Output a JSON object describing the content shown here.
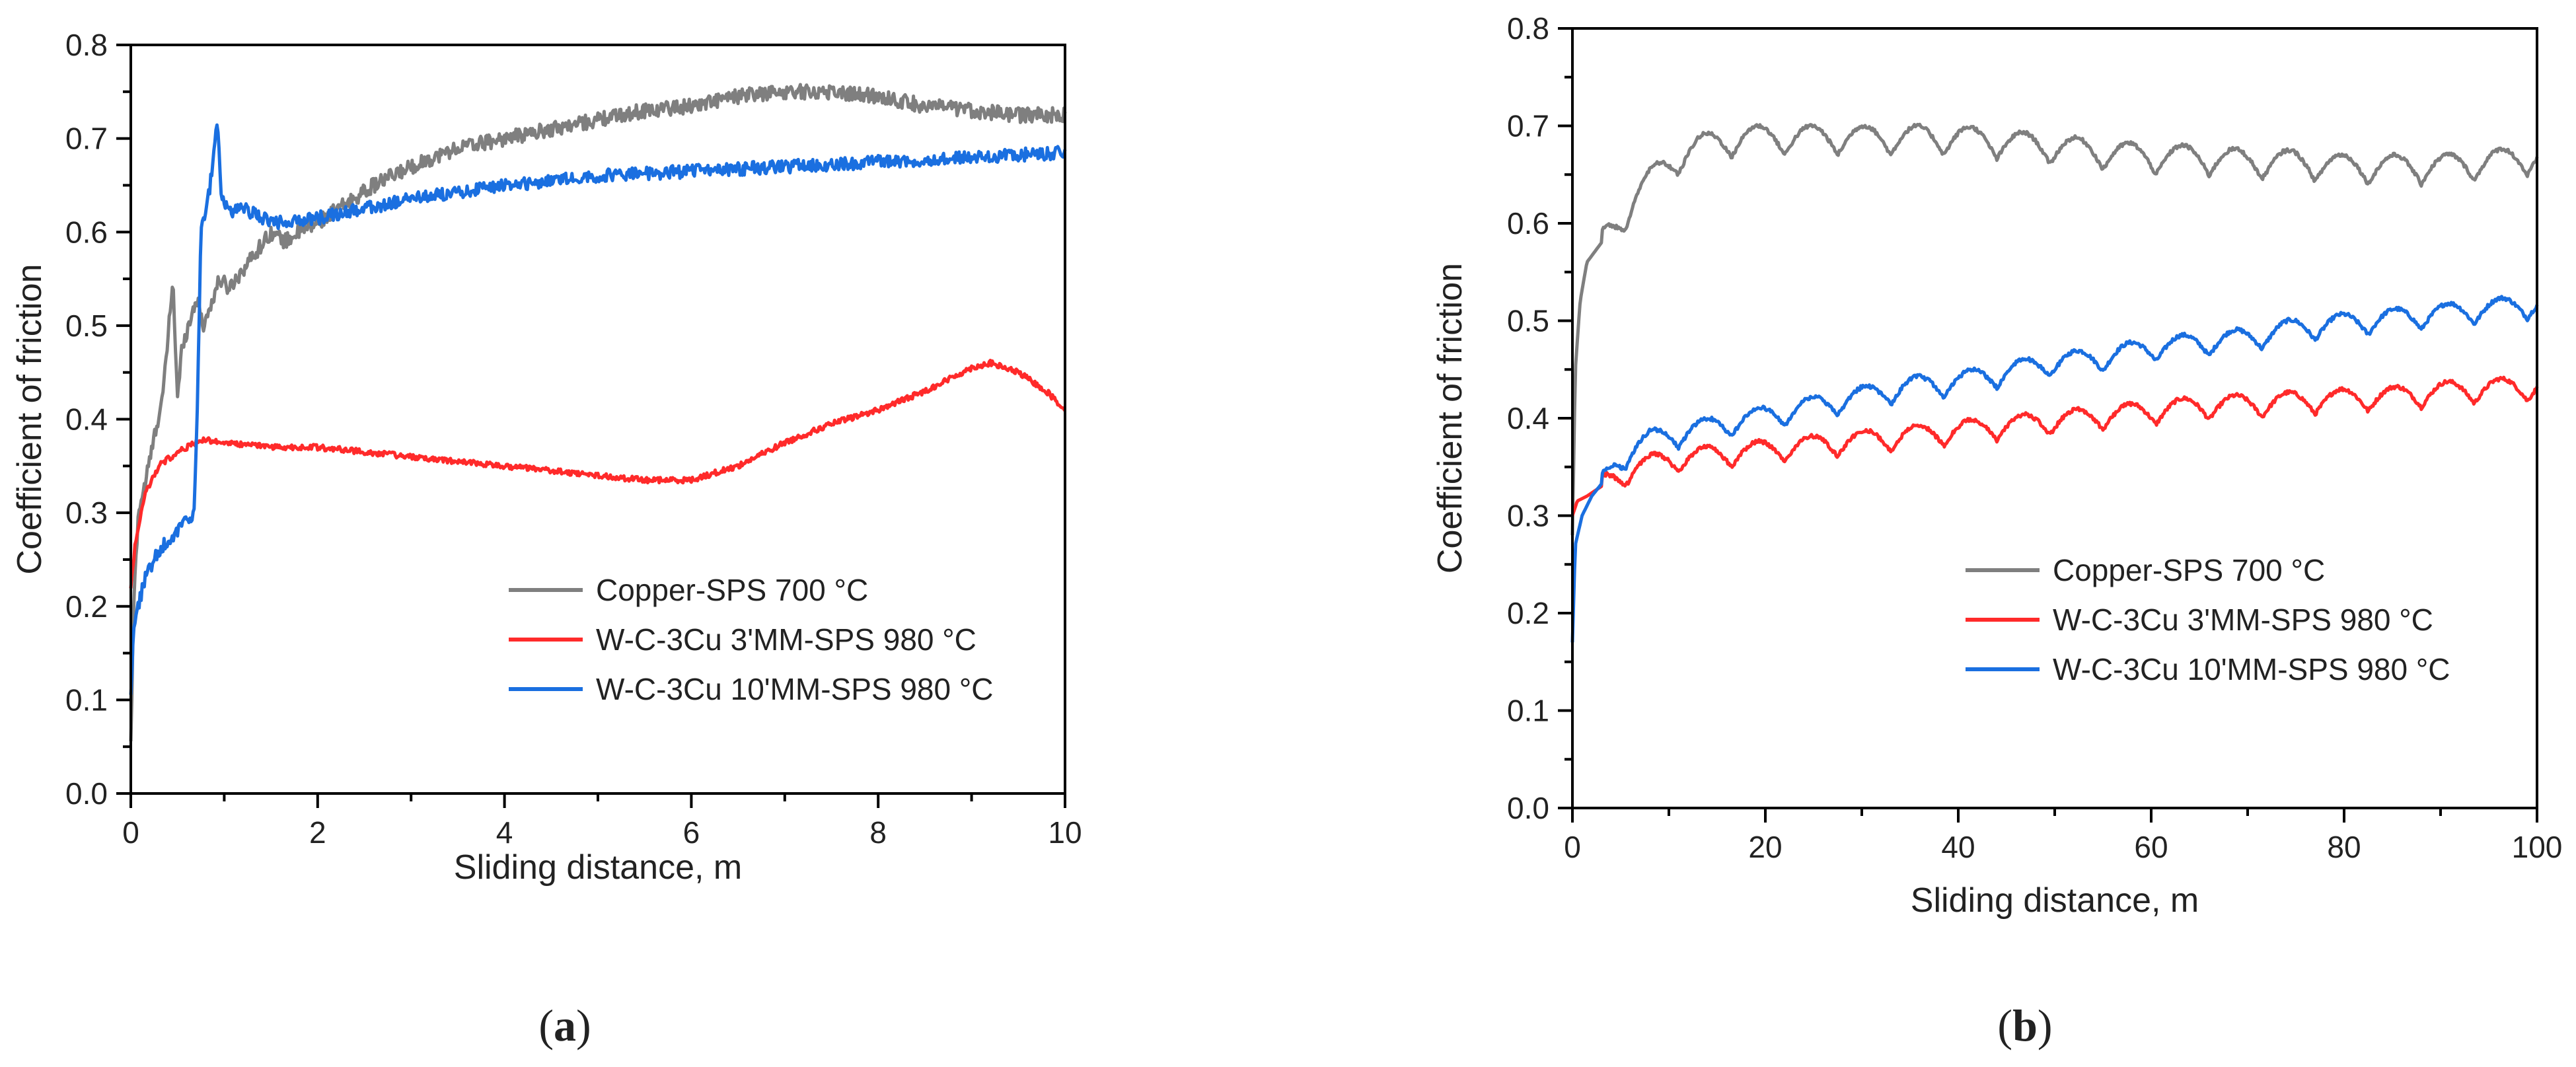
{
  "chart_data": [
    {
      "type": "line",
      "panel": "a",
      "caption_parts": [
        "(",
        "a",
        ")"
      ],
      "xlabel": "Sliding distance, m",
      "ylabel": "Coefficient of friction",
      "xlim": [
        0,
        10
      ],
      "ylim": [
        0,
        0.8
      ],
      "xticks": [
        0,
        2,
        4,
        6,
        8,
        10
      ],
      "yticks": [
        0,
        0.1,
        0.2,
        0.3,
        0.4,
        0.5,
        0.6,
        0.7,
        0.8
      ],
      "ytick_labels": [
        "0.0",
        "0.1",
        "0.2",
        "0.3",
        "0.4",
        "0.5",
        "0.6",
        "0.7",
        "0.8"
      ],
      "legend_position": "center-right",
      "series": [
        {
          "name": "Copper-SPS 700 °C",
          "color": "#7f7f7f",
          "x": [
            0,
            0.03,
            0.08,
            0.15,
            0.25,
            0.35,
            0.45,
            0.5,
            0.55,
            0.62,
            0.7,
            0.78,
            0.85,
            0.95,
            1.05,
            1.2,
            1.35,
            1.5,
            1.65,
            1.8,
            2.0,
            2.3,
            2.6,
            3.0,
            3.5,
            4.0,
            4.5,
            5.0,
            5.5,
            6.0,
            6.5,
            7.0,
            7.5,
            8.0,
            8.5,
            9.0,
            9.5,
            10.0
          ],
          "y": [
            0.05,
            0.2,
            0.3,
            0.33,
            0.38,
            0.43,
            0.55,
            0.42,
            0.48,
            0.5,
            0.53,
            0.5,
            0.52,
            0.55,
            0.54,
            0.56,
            0.58,
            0.6,
            0.59,
            0.6,
            0.61,
            0.63,
            0.65,
            0.67,
            0.69,
            0.7,
            0.71,
            0.72,
            0.73,
            0.735,
            0.745,
            0.75,
            0.75,
            0.745,
            0.735,
            0.73,
            0.725,
            0.725
          ],
          "noise": 0.008
        },
        {
          "name": "W-C-3Cu 3'MM-SPS 980 °C",
          "color": "#ff2a2a",
          "x": [
            0,
            0.05,
            0.15,
            0.3,
            0.5,
            0.7,
            0.8,
            1.0,
            1.5,
            2.0,
            3.0,
            4.0,
            5.0,
            5.5,
            6.0,
            6.5,
            7.0,
            7.5,
            8.0,
            8.5,
            9.0,
            9.2,
            9.5,
            9.8,
            10.0
          ],
          "y": [
            0.22,
            0.27,
            0.32,
            0.35,
            0.365,
            0.375,
            0.378,
            0.375,
            0.37,
            0.37,
            0.36,
            0.35,
            0.34,
            0.335,
            0.335,
            0.35,
            0.375,
            0.395,
            0.41,
            0.43,
            0.455,
            0.46,
            0.45,
            0.43,
            0.41
          ],
          "noise": 0.003
        },
        {
          "name": "W-C-3Cu 10'MM-SPS 980 °C",
          "color": "#1a6fe0",
          "x": [
            0,
            0.03,
            0.08,
            0.15,
            0.3,
            0.5,
            0.68,
            0.72,
            0.75,
            0.8,
            0.85,
            0.9,
            0.93,
            0.97,
            1.05,
            1.2,
            1.5,
            2.0,
            2.5,
            3.0,
            4.0,
            5.0,
            6.0,
            7.0,
            8.0,
            9.0,
            10.0
          ],
          "y": [
            0.1,
            0.18,
            0.2,
            0.23,
            0.26,
            0.28,
            0.3,
            0.45,
            0.6,
            0.62,
            0.65,
            0.7,
            0.71,
            0.64,
            0.62,
            0.625,
            0.61,
            0.615,
            0.625,
            0.635,
            0.65,
            0.66,
            0.665,
            0.67,
            0.675,
            0.68,
            0.685
          ],
          "noise": 0.007
        }
      ]
    },
    {
      "type": "line",
      "panel": "b",
      "caption_parts": [
        "(",
        "b",
        ")"
      ],
      "xlabel": "Sliding distance, m",
      "ylabel": "Coefficient of friction",
      "xlim": [
        0,
        100
      ],
      "ylim": [
        0,
        0.8
      ],
      "xticks": [
        0,
        20,
        40,
        60,
        80,
        100
      ],
      "yticks": [
        0,
        0.1,
        0.2,
        0.3,
        0.4,
        0.5,
        0.6,
        0.7,
        0.8
      ],
      "ytick_labels": [
        "0.0",
        "0.1",
        "0.2",
        "0.3",
        "0.4",
        "0.5",
        "0.6",
        "0.7",
        "0.8"
      ],
      "legend_position": "center-right",
      "series": [
        {
          "name": "Copper-SPS 700 °C",
          "color": "#7f7f7f",
          "x": [
            0,
            0.3,
            0.8,
            1.5,
            3,
            5,
            7,
            9,
            11,
            13,
            15,
            18,
            22,
            26,
            30,
            35,
            40,
            45,
            50,
            55,
            60,
            65,
            70,
            75,
            80,
            85,
            90,
            95,
            100
          ],
          "y": [
            0.28,
            0.45,
            0.52,
            0.56,
            0.58,
            0.6,
            0.63,
            0.65,
            0.665,
            0.675,
            0.68,
            0.685,
            0.685,
            0.685,
            0.685,
            0.685,
            0.685,
            0.68,
            0.675,
            0.67,
            0.665,
            0.665,
            0.66,
            0.66,
            0.655,
            0.655,
            0.655,
            0.66,
            0.665
          ],
          "wave_amp": 0.015,
          "wave_period": 5.5
        },
        {
          "name": "W-C-3Cu 3'MM-SPS 980 °C",
          "color": "#ff2a2a",
          "x": [
            0,
            0.5,
            1.5,
            3,
            5,
            8,
            10,
            15,
            20,
            25,
            30,
            35,
            40,
            45,
            50,
            55,
            60,
            65,
            70,
            75,
            80,
            85,
            90,
            95,
            100
          ],
          "y": [
            0.3,
            0.315,
            0.32,
            0.33,
            0.34,
            0.35,
            0.355,
            0.36,
            0.365,
            0.37,
            0.375,
            0.38,
            0.385,
            0.39,
            0.395,
            0.4,
            0.405,
            0.41,
            0.412,
            0.415,
            0.418,
            0.42,
            0.425,
            0.428,
            0.43
          ],
          "wave_amp": 0.012,
          "wave_period": 5.5
        },
        {
          "name": "W-C-3Cu 10'MM-SPS 980 °C",
          "color": "#1a6fe0",
          "x": [
            0,
            0.3,
            1,
            2,
            4,
            6,
            8,
            10,
            15,
            20,
            25,
            30,
            35,
            40,
            45,
            50,
            55,
            60,
            65,
            70,
            75,
            80,
            85,
            90,
            95,
            100
          ],
          "y": [
            0.17,
            0.27,
            0.3,
            0.32,
            0.345,
            0.365,
            0.375,
            0.38,
            0.39,
            0.4,
            0.41,
            0.42,
            0.43,
            0.435,
            0.445,
            0.455,
            0.46,
            0.47,
            0.475,
            0.48,
            0.49,
            0.495,
            0.5,
            0.505,
            0.51,
            0.515
          ],
          "wave_amp": 0.012,
          "wave_period": 5.5
        }
      ]
    }
  ]
}
